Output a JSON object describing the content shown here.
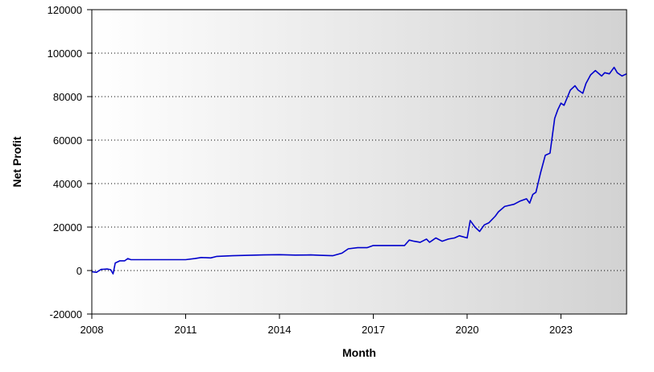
{
  "chart_data": {
    "type": "line",
    "xlabel": "Month",
    "ylabel": "Net Profit",
    "xlim": [
      2008,
      2025.1
    ],
    "ylim": [
      -20000,
      120000
    ],
    "xticks": [
      2008,
      2011,
      2014,
      2017,
      2020,
      2023
    ],
    "yticks": [
      -20000,
      0,
      20000,
      40000,
      60000,
      80000,
      100000,
      120000
    ],
    "grid": "horizontal-dotted",
    "legend": "none",
    "series_color": "#0000cc",
    "series": [
      {
        "x": [
          2008.0,
          2008.15,
          2008.3,
          2008.5,
          2008.6,
          2008.68,
          2008.75,
          2008.9,
          2009.05,
          2009.15,
          2009.25,
          2009.5,
          2010.0,
          2010.5,
          2011.0,
          2011.3,
          2011.5,
          2011.8,
          2012.0,
          2012.5,
          2013.0,
          2013.5,
          2014.0,
          2014.5,
          2015.0,
          2015.3,
          2015.7,
          2016.0,
          2016.2,
          2016.5,
          2016.8,
          2017.0,
          2017.5,
          2018.0,
          2018.15,
          2018.3,
          2018.5,
          2018.7,
          2018.8,
          2018.9,
          2019.0,
          2019.2,
          2019.4,
          2019.6,
          2019.75,
          2020.0,
          2020.1,
          2020.25,
          2020.4,
          2020.55,
          2020.7,
          2020.9,
          2021.0,
          2021.2,
          2021.5,
          2021.7,
          2021.9,
          2022.0,
          2022.1,
          2022.2,
          2022.35,
          2022.5,
          2022.65,
          2022.8,
          2022.9,
          2023.0,
          2023.1,
          2023.3,
          2023.45,
          2023.55,
          2023.7,
          2023.8,
          2023.95,
          2024.1,
          2024.3,
          2024.4,
          2024.55,
          2024.7,
          2024.8,
          2024.95,
          2025.1
        ],
        "y": [
          -500,
          -800,
          500,
          700,
          400,
          -1500,
          3500,
          4500,
          4500,
          5500,
          5000,
          5000,
          5000,
          5000,
          5000,
          5500,
          6000,
          5800,
          6500,
          6800,
          7000,
          7200,
          7300,
          7100,
          7200,
          7000,
          6800,
          8000,
          10000,
          10500,
          10500,
          11500,
          11500,
          11500,
          14000,
          13500,
          13000,
          14500,
          13000,
          14000,
          15000,
          13500,
          14500,
          15000,
          16000,
          15000,
          23000,
          20000,
          18000,
          21000,
          22000,
          25000,
          27000,
          29500,
          30500,
          32000,
          33000,
          31000,
          35000,
          36000,
          45000,
          53000,
          54000,
          70000,
          74000,
          77000,
          76000,
          83000,
          85000,
          83000,
          81500,
          86000,
          90000,
          92000,
          89500,
          91000,
          90500,
          93500,
          91000,
          89500,
          90500
        ]
      }
    ]
  }
}
